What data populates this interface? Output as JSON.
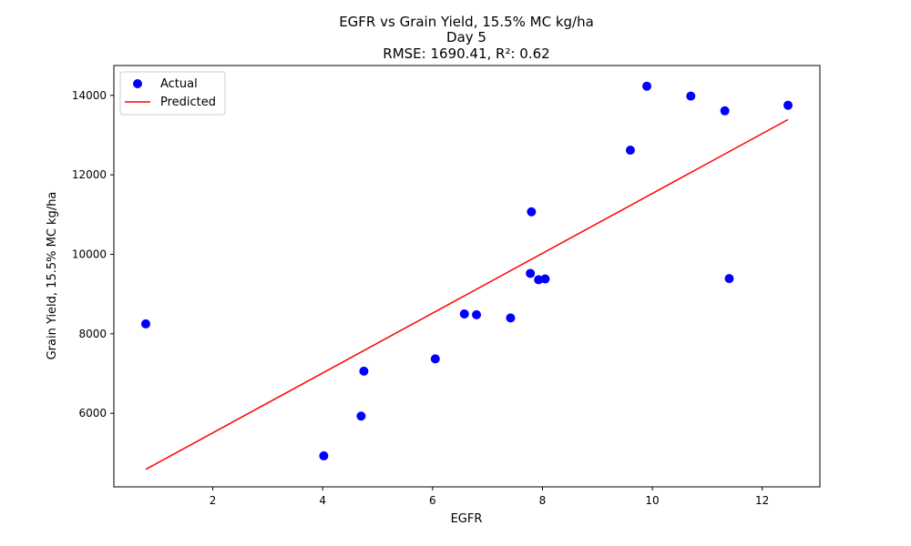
{
  "chart_data": {
    "type": "scatter",
    "title_lines": [
      "EGFR vs Grain Yield, 15.5% MC kg/ha",
      "Day 5",
      "RMSE: 1690.41, R²: 0.62"
    ],
    "xlabel": "EGFR",
    "ylabel": "Grain Yield, 15.5% MC kg/ha",
    "xlim": [
      0.2,
      13.05
    ],
    "ylim": [
      4150,
      14750
    ],
    "xticks": [
      2,
      4,
      6,
      8,
      10,
      12
    ],
    "yticks": [
      6000,
      8000,
      10000,
      12000,
      14000
    ],
    "grid": false,
    "legend_position": "top-left",
    "series": [
      {
        "name": "Actual",
        "kind": "scatter",
        "color": "#0000ff",
        "points": [
          [
            0.78,
            8250
          ],
          [
            4.02,
            4930
          ],
          [
            4.7,
            5930
          ],
          [
            4.75,
            7060
          ],
          [
            6.05,
            7370
          ],
          [
            6.58,
            8500
          ],
          [
            6.8,
            8480
          ],
          [
            7.42,
            8400
          ],
          [
            7.78,
            9520
          ],
          [
            7.8,
            11070
          ],
          [
            7.93,
            9360
          ],
          [
            8.05,
            9380
          ],
          [
            9.6,
            12620
          ],
          [
            9.9,
            14230
          ],
          [
            10.7,
            13980
          ],
          [
            11.32,
            13610
          ],
          [
            11.4,
            9390
          ],
          [
            12.47,
            13750
          ]
        ]
      },
      {
        "name": "Predicted",
        "kind": "line",
        "color": "#ff0000",
        "points": [
          [
            0.78,
            4590
          ],
          [
            12.47,
            13390
          ]
        ]
      }
    ]
  }
}
